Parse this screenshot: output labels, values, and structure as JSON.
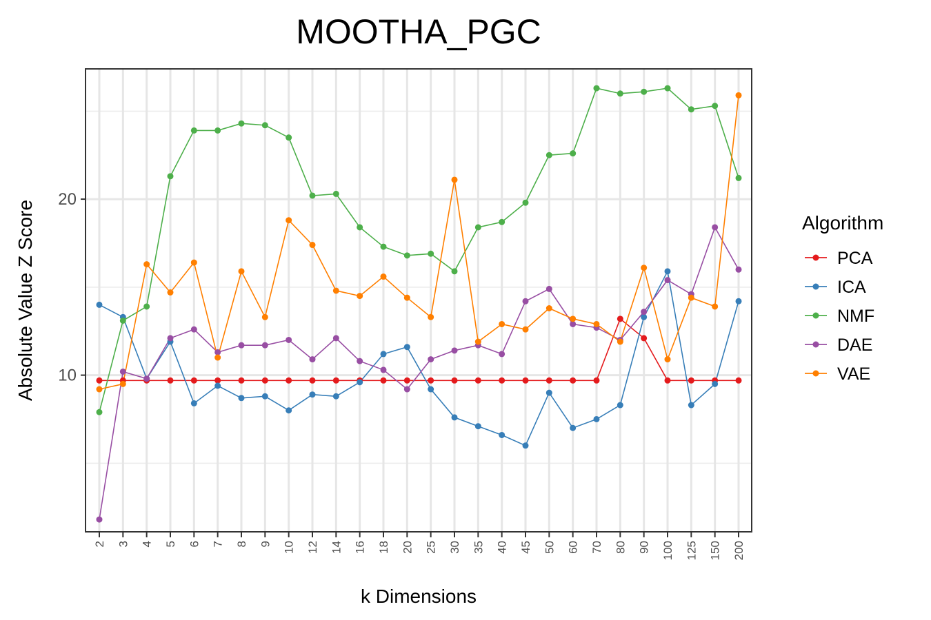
{
  "chart_data": {
    "type": "line",
    "title": "MOOTHA_PGC",
    "xlabel": "k Dimensions",
    "ylabel": "Absolute Value Z Score",
    "categories": [
      "2",
      "3",
      "4",
      "5",
      "6",
      "7",
      "8",
      "9",
      "10",
      "12",
      "14",
      "16",
      "18",
      "20",
      "25",
      "30",
      "35",
      "40",
      "45",
      "50",
      "60",
      "70",
      "80",
      "90",
      "100",
      "125",
      "150",
      "200"
    ],
    "ylim": [
      1.1,
      27.4
    ],
    "y_ticks": [
      10,
      20
    ],
    "y_tick_labels": [
      "10",
      "20"
    ],
    "grid": true,
    "legend": {
      "title": "Algorithm",
      "position": "right"
    },
    "series": [
      {
        "name": "PCA",
        "color": "#e41a1c",
        "values": [
          9.7,
          9.7,
          9.7,
          9.7,
          9.7,
          9.7,
          9.7,
          9.7,
          9.7,
          9.7,
          9.7,
          9.7,
          9.7,
          9.7,
          9.7,
          9.7,
          9.7,
          9.7,
          9.7,
          9.7,
          9.7,
          9.7,
          13.2,
          12.1,
          9.7,
          9.7,
          9.7,
          9.7
        ]
      },
      {
        "name": "ICA",
        "color": "#377eb8",
        "values": [
          14.0,
          13.3,
          9.8,
          11.9,
          8.4,
          9.4,
          8.7,
          8.8,
          8.0,
          8.9,
          8.8,
          9.6,
          11.2,
          11.6,
          9.2,
          7.6,
          7.1,
          6.6,
          6.0,
          9.0,
          7.0,
          7.5,
          8.3,
          13.3,
          15.9,
          8.3,
          9.5,
          14.2
        ]
      },
      {
        "name": "NMF",
        "color": "#4daf4a",
        "values": [
          7.9,
          13.1,
          13.9,
          21.3,
          23.9,
          23.9,
          24.3,
          24.2,
          23.5,
          20.2,
          20.3,
          18.4,
          17.3,
          16.8,
          16.9,
          15.9,
          18.4,
          18.7,
          19.8,
          22.5,
          22.6,
          26.3,
          26.0,
          26.1,
          26.3,
          25.1,
          25.3,
          21.2
        ]
      },
      {
        "name": "DAE",
        "color": "#984ea3",
        "values": [
          1.8,
          10.2,
          9.8,
          12.1,
          12.6,
          11.3,
          11.7,
          11.7,
          12.0,
          10.9,
          12.1,
          10.8,
          10.3,
          9.2,
          10.9,
          11.4,
          11.7,
          11.2,
          14.2,
          14.9,
          12.9,
          12.7,
          12.0,
          13.6,
          15.4,
          14.6,
          18.4,
          16.0
        ]
      },
      {
        "name": "VAE",
        "color": "#ff7f00",
        "values": [
          9.2,
          9.5,
          16.3,
          14.7,
          16.4,
          11.0,
          15.9,
          13.3,
          18.8,
          17.4,
          14.8,
          14.5,
          15.6,
          14.4,
          13.3,
          21.1,
          11.9,
          12.9,
          12.6,
          13.8,
          13.2,
          12.9,
          11.9,
          16.1,
          10.9,
          14.4,
          13.9,
          25.9
        ]
      }
    ]
  }
}
